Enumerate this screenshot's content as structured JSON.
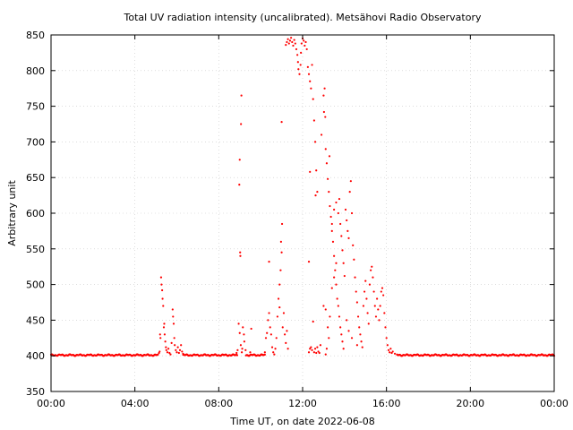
{
  "chart_data": {
    "type": "scatter",
    "title": "Total UV radiation intensity (uncalibrated). Metsähovi Radio Observatory",
    "xlabel": "Time UT, on date 2022-06-08",
    "ylabel": "Arbitrary unit",
    "x_unit": "hours UT",
    "xlim": [
      0,
      24
    ],
    "ylim": [
      350,
      850
    ],
    "xticks": [
      {
        "value": 0,
        "label": "00:00"
      },
      {
        "value": 4,
        "label": "04:00"
      },
      {
        "value": 8,
        "label": "08:00"
      },
      {
        "value": 12,
        "label": "12:00"
      },
      {
        "value": 16,
        "label": "16:00"
      },
      {
        "value": 20,
        "label": "20:00"
      },
      {
        "value": 24,
        "label": "00:00"
      }
    ],
    "yticks": [
      350,
      400,
      450,
      500,
      550,
      600,
      650,
      700,
      750,
      800,
      850
    ],
    "grid": true,
    "legend": "none",
    "marker_color": "#ff0000",
    "baseline_segments": [
      {
        "x_start": 0.0,
        "x_end": 5.1,
        "y": 401
      },
      {
        "x_start": 6.3,
        "x_end": 8.9,
        "y": 401
      },
      {
        "x_start": 9.3,
        "x_end": 10.2,
        "y": 401
      },
      {
        "x_start": 16.5,
        "x_end": 24.0,
        "y": 401
      }
    ],
    "series": [
      {
        "points": [
          [
            5.25,
            510
          ],
          [
            5.27,
            500
          ],
          [
            5.3,
            492
          ],
          [
            5.32,
            480
          ],
          [
            5.35,
            470
          ],
          [
            5.2,
            430
          ],
          [
            5.22,
            425
          ],
          [
            5.38,
            440
          ],
          [
            5.4,
            445
          ],
          [
            5.42,
            430
          ],
          [
            5.45,
            420
          ],
          [
            5.48,
            412
          ],
          [
            5.5,
            408
          ],
          [
            5.55,
            405
          ],
          [
            5.6,
            410
          ],
          [
            5.65,
            404
          ],
          [
            5.7,
            402
          ],
          [
            5.75,
            418
          ],
          [
            5.8,
            465
          ],
          [
            5.82,
            455
          ],
          [
            5.85,
            445
          ],
          [
            5.88,
            425
          ],
          [
            5.9,
            415
          ],
          [
            5.95,
            408
          ],
          [
            6.0,
            405
          ],
          [
            6.05,
            412
          ],
          [
            6.1,
            404
          ],
          [
            6.15,
            408
          ],
          [
            6.2,
            415
          ],
          [
            6.25,
            406
          ],
          [
            6.3,
            403
          ],
          [
            5.15,
            404
          ],
          [
            5.18,
            406
          ],
          [
            8.95,
            445
          ],
          [
            9.0,
            432
          ],
          [
            9.05,
            415
          ],
          [
            9.1,
            405
          ],
          [
            9.12,
            410
          ],
          [
            9.15,
            440
          ],
          [
            9.2,
            430
          ],
          [
            9.22,
            420
          ],
          [
            9.28,
            408
          ],
          [
            8.85,
            404
          ],
          [
            8.9,
            408
          ],
          [
            9.5,
            405
          ],
          [
            9.55,
            438
          ],
          [
            8.98,
            640
          ],
          [
            9.0,
            675
          ],
          [
            9.02,
            545
          ],
          [
            9.03,
            540
          ],
          [
            9.08,
            765
          ],
          [
            9.06,
            725
          ],
          [
            10.2,
            405
          ],
          [
            10.25,
            425
          ],
          [
            10.3,
            432
          ],
          [
            10.35,
            450
          ],
          [
            10.4,
            460
          ],
          [
            10.45,
            440
          ],
          [
            10.5,
            430
          ],
          [
            10.55,
            412
          ],
          [
            10.6,
            405
          ],
          [
            10.65,
            402
          ],
          [
            10.7,
            410
          ],
          [
            10.75,
            425
          ],
          [
            10.8,
            455
          ],
          [
            10.85,
            480
          ],
          [
            10.9,
            500
          ],
          [
            10.95,
            520
          ],
          [
            11.0,
            545
          ],
          [
            10.97,
            560
          ],
          [
            11.02,
            585
          ],
          [
            11.05,
            440
          ],
          [
            11.1,
            460
          ],
          [
            11.15,
            430
          ],
          [
            11.2,
            418
          ],
          [
            11.25,
            435
          ],
          [
            11.3,
            410
          ],
          [
            10.4,
            532
          ],
          [
            10.9,
            468
          ],
          [
            11.0,
            728
          ],
          [
            11.2,
            836
          ],
          [
            11.25,
            840
          ],
          [
            11.3,
            844
          ],
          [
            11.35,
            838
          ],
          [
            11.4,
            842
          ],
          [
            11.45,
            846
          ],
          [
            11.5,
            840
          ],
          [
            11.55,
            835
          ],
          [
            11.6,
            843
          ],
          [
            11.65,
            838
          ],
          [
            11.7,
            830
          ],
          [
            11.75,
            822
          ],
          [
            11.78,
            812
          ],
          [
            11.8,
            802
          ],
          [
            11.85,
            795
          ],
          [
            11.9,
            808
          ],
          [
            11.92,
            825
          ],
          [
            11.95,
            838
          ],
          [
            12.0,
            845
          ],
          [
            12.05,
            842
          ],
          [
            12.1,
            835
          ],
          [
            12.15,
            840
          ],
          [
            12.2,
            830
          ],
          [
            12.25,
            805
          ],
          [
            12.3,
            795
          ],
          [
            12.35,
            785
          ],
          [
            12.4,
            775
          ],
          [
            12.45,
            808
          ],
          [
            12.5,
            760
          ],
          [
            12.55,
            730
          ],
          [
            12.6,
            700
          ],
          [
            12.62,
            625
          ],
          [
            12.65,
            660
          ],
          [
            12.7,
            630
          ],
          [
            12.3,
            532
          ],
          [
            12.35,
            658
          ],
          [
            12.5,
            448
          ],
          [
            12.4,
            412
          ],
          [
            12.45,
            408
          ],
          [
            12.55,
            405
          ],
          [
            12.6,
            410
          ],
          [
            12.65,
            404
          ],
          [
            12.7,
            412
          ],
          [
            12.75,
            406
          ],
          [
            12.8,
            404
          ],
          [
            12.85,
            415
          ],
          [
            12.3,
            405
          ],
          [
            12.35,
            410
          ],
          [
            12.9,
            710
          ],
          [
            13.0,
            765
          ],
          [
            13.05,
            775
          ],
          [
            13.02,
            742
          ],
          [
            13.08,
            735
          ],
          [
            13.1,
            690
          ],
          [
            13.15,
            670
          ],
          [
            13.2,
            648
          ],
          [
            13.25,
            630
          ],
          [
            13.28,
            680
          ],
          [
            13.3,
            610
          ],
          [
            13.35,
            595
          ],
          [
            13.4,
            575
          ],
          [
            13.45,
            560
          ],
          [
            13.5,
            540
          ],
          [
            13.55,
            520
          ],
          [
            13.6,
            500
          ],
          [
            13.65,
            480
          ],
          [
            13.7,
            470
          ],
          [
            13.75,
            455
          ],
          [
            13.8,
            440
          ],
          [
            13.85,
            430
          ],
          [
            13.9,
            420
          ],
          [
            13.95,
            410
          ],
          [
            13.0,
            470
          ],
          [
            13.1,
            465
          ],
          [
            13.2,
            440
          ],
          [
            13.25,
            425
          ],
          [
            13.3,
            455
          ],
          [
            13.4,
            495
          ],
          [
            13.5,
            510
          ],
          [
            13.6,
            530
          ],
          [
            13.7,
            600
          ],
          [
            13.75,
            620
          ],
          [
            13.8,
            585
          ],
          [
            13.85,
            568
          ],
          [
            13.9,
            548
          ],
          [
            13.95,
            530
          ],
          [
            14.0,
            512
          ],
          [
            14.05,
            605
          ],
          [
            14.1,
            590
          ],
          [
            14.15,
            575
          ],
          [
            14.2,
            565
          ],
          [
            14.25,
            630
          ],
          [
            14.3,
            645
          ],
          [
            14.35,
            600
          ],
          [
            14.4,
            555
          ],
          [
            14.45,
            535
          ],
          [
            14.5,
            510
          ],
          [
            14.55,
            490
          ],
          [
            14.6,
            475
          ],
          [
            14.65,
            455
          ],
          [
            14.7,
            440
          ],
          [
            14.75,
            430
          ],
          [
            14.8,
            420
          ],
          [
            14.85,
            412
          ],
          [
            14.9,
            470
          ],
          [
            14.95,
            490
          ],
          [
            15.0,
            505
          ],
          [
            15.05,
            480
          ],
          [
            15.1,
            460
          ],
          [
            15.15,
            445
          ],
          [
            15.2,
            500
          ],
          [
            15.25,
            520
          ],
          [
            15.3,
            525
          ],
          [
            15.35,
            510
          ],
          [
            15.4,
            490
          ],
          [
            15.45,
            470
          ],
          [
            15.5,
            455
          ],
          [
            15.55,
            480
          ],
          [
            15.6,
            465
          ],
          [
            15.65,
            450
          ],
          [
            15.7,
            470
          ],
          [
            15.75,
            490
          ],
          [
            15.8,
            495
          ],
          [
            15.85,
            485
          ],
          [
            15.9,
            460
          ],
          [
            15.95,
            440
          ],
          [
            16.0,
            425
          ],
          [
            16.05,
            415
          ],
          [
            16.1,
            408
          ],
          [
            16.15,
            405
          ],
          [
            16.2,
            410
          ],
          [
            16.25,
            404
          ],
          [
            16.3,
            406
          ],
          [
            16.4,
            403
          ],
          [
            13.6,
            615
          ],
          [
            13.5,
            605
          ],
          [
            13.4,
            585
          ],
          [
            14.1,
            450
          ],
          [
            14.2,
            435
          ],
          [
            14.35,
            425
          ],
          [
            14.6,
            415
          ],
          [
            13.15,
            410
          ],
          [
            13.1,
            402
          ]
        ]
      }
    ]
  }
}
